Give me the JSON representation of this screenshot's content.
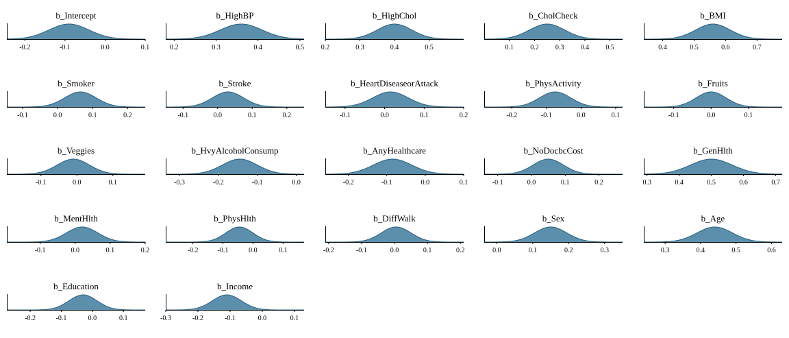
{
  "style": {
    "fill": "#5b8fab",
    "stroke": "#2a6080",
    "axis": "#000000"
  },
  "chart_data": [
    {
      "type": "area",
      "title": "b_Intercept",
      "mean": -0.09,
      "sd": 0.05,
      "xlim": [
        -0.245,
        0.1
      ],
      "ticks": [
        -0.2,
        -0.1,
        0.0,
        0.1
      ],
      "tick_labels": [
        "-0.2",
        "-0.1",
        "0.0",
        "0.1"
      ]
    },
    {
      "type": "area",
      "title": "b_HighBP",
      "mean": 0.36,
      "sd": 0.05,
      "xlim": [
        0.18,
        0.51
      ],
      "ticks": [
        0.2,
        0.3,
        0.4,
        0.5
      ],
      "tick_labels": [
        "0.2",
        "0.3",
        "0.4",
        "0.5"
      ]
    },
    {
      "type": "area",
      "title": "b_HighChol",
      "mean": 0.4,
      "sd": 0.05,
      "xlim": [
        0.2,
        0.6
      ],
      "ticks": [
        0.2,
        0.3,
        0.4,
        0.5
      ],
      "tick_labels": [
        "0.2",
        "0.3",
        "0.4",
        "0.5"
      ]
    },
    {
      "type": "area",
      "title": "b_CholCheck",
      "mean": 0.25,
      "sd": 0.07,
      "xlim": [
        0.0,
        0.55
      ],
      "ticks": [
        0.1,
        0.2,
        0.3,
        0.4,
        0.5
      ],
      "tick_labels": [
        "0.1",
        "0.2",
        "0.3",
        "0.4",
        "0.5"
      ]
    },
    {
      "type": "area",
      "title": "b_BMI",
      "mean": 0.56,
      "sd": 0.055,
      "xlim": [
        0.34,
        0.78
      ],
      "ticks": [
        0.4,
        0.5,
        0.6,
        0.7
      ],
      "tick_labels": [
        "0.4",
        "0.5",
        "0.6",
        "0.7"
      ]
    },
    {
      "type": "area",
      "title": "b_Smoker",
      "mean": 0.065,
      "sd": 0.045,
      "xlim": [
        -0.145,
        0.25
      ],
      "ticks": [
        -0.1,
        0.0,
        0.1,
        0.2
      ],
      "tick_labels": [
        "-0.1",
        "0.0",
        "0.1",
        "0.2"
      ]
    },
    {
      "type": "area",
      "title": "b_Stroke",
      "mean": 0.03,
      "sd": 0.045,
      "xlim": [
        -0.15,
        0.25
      ],
      "ticks": [
        -0.1,
        0.0,
        0.1,
        0.2
      ],
      "tick_labels": [
        "-0.1",
        "0.0",
        "0.1",
        "0.2"
      ]
    },
    {
      "type": "area",
      "title": "b_HeartDiseaseorAttack",
      "mean": 0.015,
      "sd": 0.045,
      "xlim": [
        -0.15,
        0.2
      ],
      "ticks": [
        -0.1,
        0.0,
        0.1,
        0.2
      ],
      "tick_labels": [
        "-0.1",
        "0.0",
        "0.1",
        "0.2"
      ]
    },
    {
      "type": "area",
      "title": "b_PhysActivity",
      "mean": -0.075,
      "sd": 0.045,
      "xlim": [
        -0.28,
        0.12
      ],
      "ticks": [
        -0.2,
        -0.1,
        0.0,
        0.1
      ],
      "tick_labels": [
        "-0.2",
        "-0.1",
        "0.0",
        "0.1"
      ]
    },
    {
      "type": "area",
      "title": "b_Fruits",
      "mean": 0.0,
      "sd": 0.04,
      "xlim": [
        -0.18,
        0.19
      ],
      "ticks": [
        -0.1,
        0.0,
        0.1
      ],
      "tick_labels": [
        "-0.1",
        "0.0",
        "0.1"
      ]
    },
    {
      "type": "area",
      "title": "b_Veggies",
      "mean": -0.01,
      "sd": 0.045,
      "xlim": [
        -0.195,
        0.19
      ],
      "ticks": [
        -0.1,
        0.0,
        0.1
      ],
      "tick_labels": [
        "-0.1",
        "0.0",
        "0.1"
      ]
    },
    {
      "type": "area",
      "title": "b_HvyAlcoholConsump",
      "mean": -0.145,
      "sd": 0.045,
      "xlim": [
        -0.335,
        0.02
      ],
      "ticks": [
        -0.3,
        -0.2,
        -0.1,
        0.0
      ],
      "tick_labels": [
        "-0.3",
        "-0.2",
        "-0.1",
        "0.0"
      ]
    },
    {
      "type": "area",
      "title": "b_AnyHealthcare",
      "mean": -0.085,
      "sd": 0.05,
      "xlim": [
        -0.26,
        0.1
      ],
      "ticks": [
        -0.2,
        -0.1,
        0.0,
        0.1
      ],
      "tick_labels": [
        "-0.2",
        "-0.1",
        "0.0",
        "0.1"
      ]
    },
    {
      "type": "area",
      "title": "b_NoDocbcCost",
      "mean": 0.05,
      "sd": 0.045,
      "xlim": [
        -0.14,
        0.27
      ],
      "ticks": [
        -0.1,
        0.0,
        0.1,
        0.2
      ],
      "tick_labels": [
        "-0.1",
        "0.0",
        "0.1",
        "0.2"
      ]
    },
    {
      "type": "area",
      "title": "b_GenHlth",
      "mean": 0.5,
      "sd": 0.065,
      "xlim": [
        0.29,
        0.72
      ],
      "ticks": [
        0.3,
        0.4,
        0.5,
        0.6,
        0.7
      ],
      "tick_labels": [
        "0.3",
        "0.4",
        "0.5",
        "0.6",
        "0.7"
      ]
    },
    {
      "type": "area",
      "title": "b_MentHlth",
      "mean": 0.02,
      "sd": 0.045,
      "xlim": [
        -0.195,
        0.2
      ],
      "ticks": [
        -0.1,
        0.0,
        0.1,
        0.2
      ],
      "tick_labels": [
        "-0.1",
        "0.0",
        "0.1",
        "0.2"
      ]
    },
    {
      "type": "area",
      "title": "b_PhysHlth",
      "mean": -0.045,
      "sd": 0.045,
      "xlim": [
        -0.29,
        0.17
      ],
      "ticks": [
        -0.2,
        -0.1,
        0.0,
        0.1
      ],
      "tick_labels": [
        "-0.2",
        "-0.1",
        "0.0",
        "0.1"
      ]
    },
    {
      "type": "area",
      "title": "b_DiffWalk",
      "mean": 0.005,
      "sd": 0.045,
      "xlim": [
        -0.21,
        0.21
      ],
      "ticks": [
        -0.2,
        -0.1,
        0.0,
        0.1,
        0.2
      ],
      "tick_labels": [
        "-0.2",
        "-0.1",
        "0.0",
        "0.1",
        "0.2"
      ]
    },
    {
      "type": "area",
      "title": "b_Sex",
      "mean": 0.15,
      "sd": 0.045,
      "xlim": [
        -0.035,
        0.35
      ],
      "ticks": [
        0.0,
        0.1,
        0.2,
        0.3
      ],
      "tick_labels": [
        "0.0",
        "0.1",
        "0.2",
        "0.3"
      ]
    },
    {
      "type": "area",
      "title": "b_Age",
      "mean": 0.44,
      "sd": 0.05,
      "xlim": [
        0.24,
        0.63
      ],
      "ticks": [
        0.3,
        0.4,
        0.5,
        0.6
      ],
      "tick_labels": [
        "0.3",
        "0.4",
        "0.5",
        "0.6"
      ]
    },
    {
      "type": "area",
      "title": "b_Education",
      "mean": -0.03,
      "sd": 0.045,
      "xlim": [
        -0.275,
        0.17
      ],
      "ticks": [
        -0.2,
        -0.1,
        0.0,
        0.1
      ],
      "tick_labels": [
        "-0.2",
        "-0.1",
        "0.0",
        "0.1"
      ]
    },
    {
      "type": "area",
      "title": "b_Income",
      "mean": -0.11,
      "sd": 0.045,
      "xlim": [
        -0.3,
        0.13
      ],
      "ticks": [
        -0.3,
        -0.2,
        -0.1,
        0.0,
        0.1
      ],
      "tick_labels": [
        "-0.3",
        "-0.2",
        "-0.1",
        "0.0",
        "0.1"
      ]
    }
  ]
}
